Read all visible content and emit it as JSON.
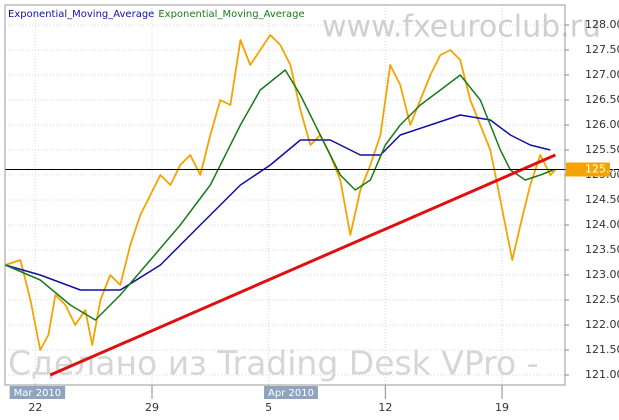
{
  "chart_data": {
    "type": "line",
    "annotations": [
      "www.fxeuroclub.ru",
      "Сделано из Trading Desk VPro -"
    ],
    "xlim": [
      -1.3,
      22.7
    ],
    "xticks": [
      {
        "value": 0,
        "label": "22"
      },
      {
        "value": 5,
        "label": "29"
      },
      {
        "value": 10,
        "label": "5"
      },
      {
        "value": 15,
        "label": "12"
      },
      {
        "value": 20,
        "label": "19"
      }
    ],
    "period_labels": [
      {
        "value": -1.1,
        "label": "Mar 2010"
      },
      {
        "value": 9.8,
        "label": "Apr 2010"
      }
    ],
    "ylim": [
      120.8,
      128.4
    ],
    "yticks": [
      {
        "value": 121,
        "label": "121.00"
      },
      {
        "value": 121.5,
        "label": "121.50"
      },
      {
        "value": 122,
        "label": "122.00"
      },
      {
        "value": 122.5,
        "label": "122.50"
      },
      {
        "value": 123,
        "label": "123.00"
      },
      {
        "value": 123.5,
        "label": "123.50"
      },
      {
        "value": 124,
        "label": "124.00"
      },
      {
        "value": 124.5,
        "label": "124.50"
      },
      {
        "value": 125,
        "label": "125.00"
      },
      {
        "value": 125.5,
        "label": "125.50"
      },
      {
        "value": 126,
        "label": "126.00"
      },
      {
        "value": 126.5,
        "label": "126.50"
      },
      {
        "value": 127,
        "label": "127.00"
      },
      {
        "value": 127.5,
        "label": "127.50"
      },
      {
        "value": 128,
        "label": "128.00"
      }
    ],
    "grid": true,
    "last_price": 125.11,
    "last_price_color": "#f5a300",
    "series": [
      {
        "color": "#f5a300",
        "x": [
          -1.29,
          -0.64,
          -0.21,
          0.21,
          0.56,
          0.86,
          1.29,
          1.71,
          2.14,
          2.44,
          2.79,
          3.21,
          3.64,
          4.07,
          4.5,
          4.93,
          5.36,
          5.79,
          6.21,
          6.64,
          7.07,
          7.5,
          7.93,
          8.36,
          8.79,
          9.21,
          9.64,
          10.07,
          10.5,
          10.93,
          11.36,
          11.79,
          12.21,
          12.64,
          13.07,
          13.5,
          13.93,
          14.36,
          14.79,
          15.21,
          15.64,
          16.07,
          16.5,
          16.93,
          17.36,
          17.79,
          18.21,
          18.64,
          19.07,
          19.5,
          19.93,
          20.14,
          20.44,
          20.79,
          21.21,
          21.64,
          22.07,
          22.29
        ],
        "values": [
          123.2,
          123.3,
          122.5,
          121.5,
          121.8,
          122.6,
          122.4,
          122.0,
          122.3,
          121.6,
          122.5,
          123.0,
          122.8,
          123.6,
          124.2,
          124.6,
          125.0,
          124.8,
          125.2,
          125.4,
          125.0,
          125.8,
          126.5,
          126.4,
          127.7,
          127.2,
          127.5,
          127.8,
          127.6,
          127.2,
          126.3,
          125.6,
          125.8,
          125.4,
          124.9,
          123.8,
          124.7,
          125.2,
          125.8,
          127.2,
          126.8,
          126.0,
          126.5,
          127.0,
          127.4,
          127.5,
          127.3,
          126.5,
          126.0,
          125.5,
          124.5,
          124.0,
          123.3,
          124.0,
          124.8,
          125.4,
          125.0,
          125.1
        ]
      },
      {
        "name": "Exponential_Moving_Average",
        "color": "#1010a0",
        "x": [
          -1.29,
          0.21,
          1.93,
          3.64,
          5.36,
          7.07,
          8.79,
          10.07,
          11.36,
          12.64,
          13.93,
          14.79,
          15.64,
          16.93,
          18.21,
          19.5,
          20.36,
          21.21,
          22.07
        ],
        "values": [
          123.2,
          123.0,
          122.7,
          122.7,
          123.2,
          124.0,
          124.8,
          125.2,
          125.7,
          125.7,
          125.4,
          125.4,
          125.8,
          126.0,
          126.2,
          126.1,
          125.8,
          125.6,
          125.5
        ]
      },
      {
        "name": "Exponential_Moving_Average",
        "color": "#1a7a1a",
        "x": [
          -1.29,
          0.21,
          1.5,
          2.57,
          3.64,
          4.93,
          6.21,
          7.5,
          8.79,
          9.64,
          10.71,
          11.36,
          12.21,
          13.07,
          13.71,
          14.36,
          15.0,
          15.64,
          16.5,
          17.36,
          18.21,
          19.07,
          19.93,
          20.36,
          21.0,
          21.64,
          22.2
        ],
        "values": [
          123.2,
          122.9,
          122.4,
          122.1,
          122.6,
          123.3,
          124.0,
          124.8,
          126.0,
          126.7,
          127.1,
          126.6,
          125.8,
          125.0,
          124.7,
          124.9,
          125.6,
          126.0,
          126.4,
          126.7,
          127.0,
          126.5,
          125.5,
          125.1,
          124.9,
          125.0,
          125.1
        ]
      },
      {
        "color": "#e01010",
        "x": [
          0.64,
          22.29
        ],
        "values": [
          121.0,
          125.4
        ]
      }
    ]
  }
}
